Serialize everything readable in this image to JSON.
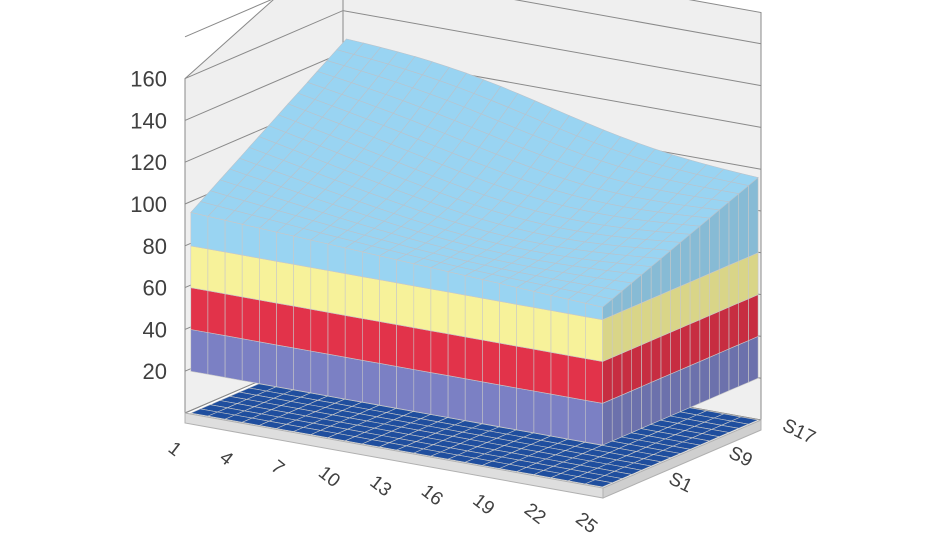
{
  "chart_data": {
    "type": "surface3d",
    "z_axis_ticks": [
      "20",
      "40",
      "60",
      "80",
      "100",
      "120",
      "140",
      "160"
    ],
    "z_range": [
      0,
      160
    ],
    "x_categories": [
      "1",
      "4",
      "7",
      "10",
      "13",
      "16",
      "19",
      "22",
      "25"
    ],
    "depth_series": [
      "S1",
      "S9",
      "S17"
    ],
    "bands": [
      {
        "from": 0,
        "to": 20,
        "color": "#1f4e9e"
      },
      {
        "from": 20,
        "to": 40,
        "color": "#7b80c4"
      },
      {
        "from": 40,
        "to": 60,
        "color": "#e2334a"
      },
      {
        "from": 60,
        "to": 80,
        "color": "#f7f29a"
      },
      {
        "from": 80,
        "to": 160,
        "color": "#99d4f2"
      }
    ],
    "surface_summary": {
      "front_left": 96,
      "front_right": 86,
      "back_left": 147,
      "back_right": 116,
      "plateau_floor": 0
    },
    "grid": true,
    "wall_color": "#efefef",
    "grid_color": "#8a8a8a"
  }
}
